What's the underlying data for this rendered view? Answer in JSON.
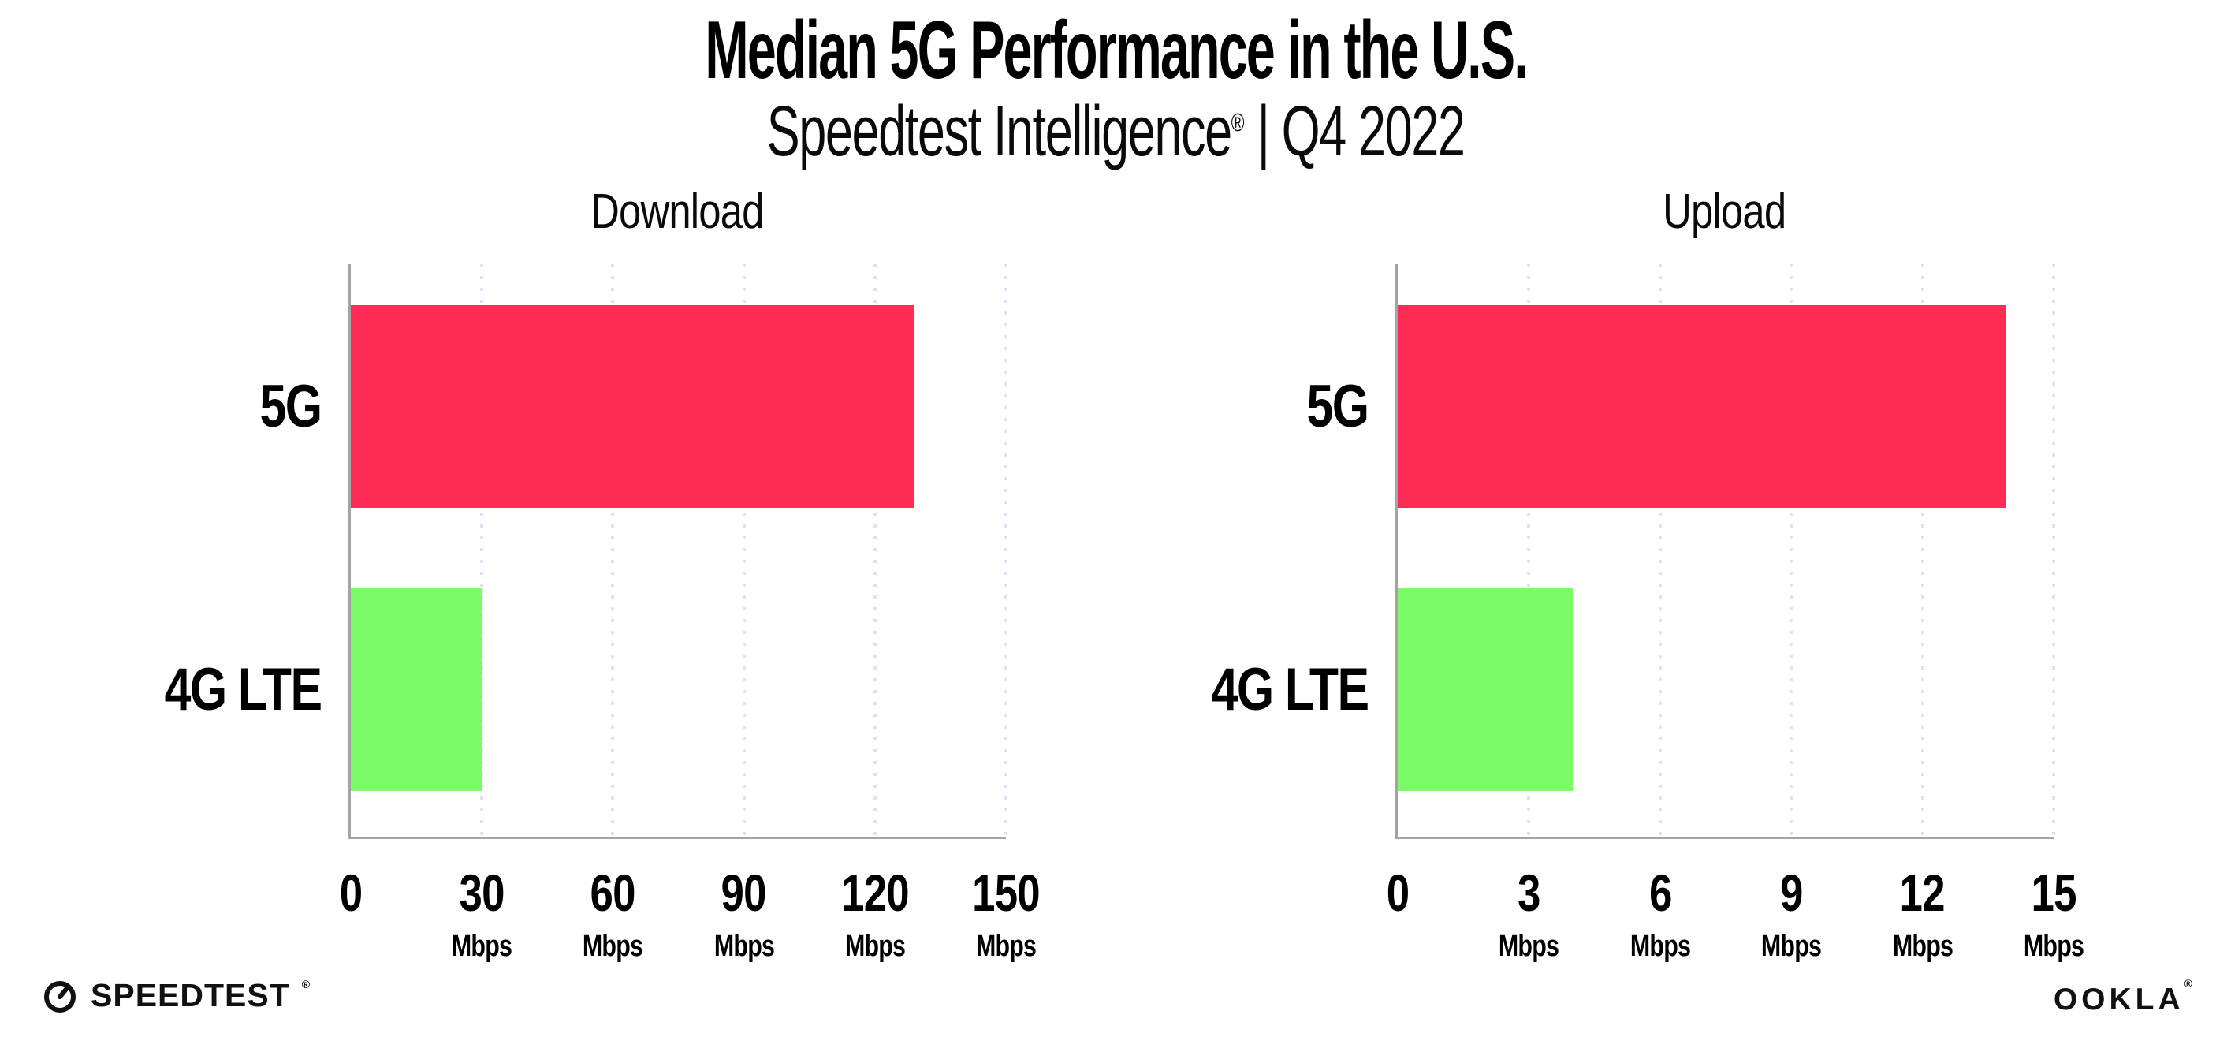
{
  "header": {
    "title": "Median 5G Performance in the U.S.",
    "subtitle_brand": "Speedtest Intelligence",
    "subtitle_reg": "®",
    "subtitle_rest": " | Q4 2022"
  },
  "chart_data": [
    {
      "type": "bar",
      "orientation": "horizontal",
      "title": "Download",
      "categories": [
        "5G",
        "4G LTE"
      ],
      "values": [
        128.8,
        30
      ],
      "unit": "Mbps",
      "xlim": [
        0,
        150
      ],
      "ticks": [
        "0",
        "30",
        "60",
        "90",
        "120",
        "150"
      ],
      "bar_colors": [
        "#ff2d55",
        "#7bfc66"
      ],
      "grid": "dotted vertical gridline at every tick",
      "legend": "none"
    },
    {
      "type": "bar",
      "orientation": "horizontal",
      "title": "Upload",
      "categories": [
        "5G",
        "4G LTE"
      ],
      "values": [
        13.9,
        4
      ],
      "unit": "Mbps",
      "xlim": [
        0,
        15
      ],
      "ticks": [
        "0",
        "3",
        "6",
        "9",
        "12",
        "15"
      ],
      "bar_colors": [
        "#ff2d55",
        "#7bfc66"
      ],
      "grid": "dotted vertical gridline at every tick",
      "legend": "none"
    }
  ],
  "footer": {
    "speedtest_label": "SPEEDTEST",
    "speedtest_reg": "®",
    "ookla_label": "OOKLA",
    "ookla_reg": "®"
  },
  "icons": {
    "speedtest": "gauge-dial-icon"
  },
  "colors": {
    "bar_5g": "#ff2d55",
    "bar_4g_lte": "#7bfc66",
    "axis": "#a3a3a8",
    "gridline": "#e2e2ee",
    "text": "#0d0d0d",
    "background": "#ffffff"
  }
}
